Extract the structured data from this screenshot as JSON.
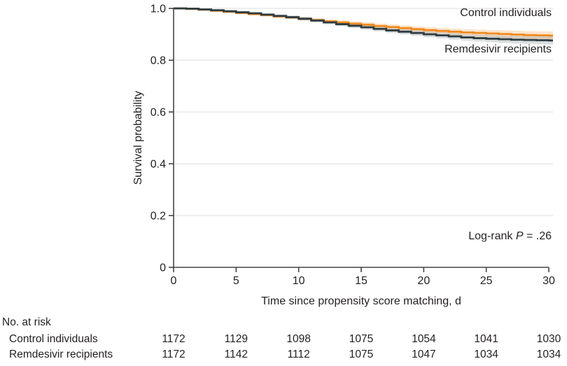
{
  "figure": {
    "background": "#ffffff",
    "axis_color": "#454545",
    "grid_color": "#e9e9e9",
    "text_color": "#231F20"
  },
  "chart_data": {
    "type": "line",
    "subtype": "kaplan-meier-step",
    "title": "",
    "xlabel": "Time since propensity score matching, d",
    "ylabel": "Survival probability",
    "xlim": [
      0,
      30
    ],
    "ylim": [
      0,
      1.0
    ],
    "x_ticks": [
      0,
      5,
      10,
      15,
      20,
      25,
      30
    ],
    "y_ticks": [
      0,
      0.2,
      0.4,
      0.6,
      0.8,
      1.0
    ],
    "y_tick_labels": [
      "0",
      "0.2",
      "0.4",
      "0.6",
      "0.8",
      "1.0"
    ],
    "grid": "horizontal",
    "legend_position": "inline-labels",
    "annotation": {
      "prefix": "Log-rank ",
      "stat": "P",
      "value": " = .26"
    },
    "series": [
      {
        "name": "Control individuals",
        "color": "#F18A21",
        "band_color": "#F18A21",
        "band_opacity": 0.22,
        "x": [
          0,
          1,
          2,
          3,
          4,
          5,
          6,
          7,
          8,
          9,
          10,
          11,
          12,
          13,
          14,
          15,
          16,
          17,
          18,
          19,
          20,
          21,
          22,
          23,
          24,
          25,
          26,
          27,
          28,
          29,
          30
        ],
        "values": [
          1.0,
          0.998,
          0.995,
          0.991,
          0.987,
          0.982,
          0.978,
          0.974,
          0.969,
          0.965,
          0.96,
          0.955,
          0.95,
          0.946,
          0.941,
          0.937,
          0.932,
          0.928,
          0.924,
          0.92,
          0.916,
          0.913,
          0.91,
          0.907,
          0.905,
          0.903,
          0.901,
          0.899,
          0.897,
          0.896,
          0.895
        ],
        "ci_halfwidth_start": 0.002,
        "ci_halfwidth_end": 0.016
      },
      {
        "name": "Remdesivir recipients",
        "color": "#2E3D42",
        "band_color": "#6E7A7D",
        "band_opacity": 0.25,
        "x": [
          0,
          1,
          2,
          3,
          4,
          5,
          6,
          7,
          8,
          9,
          10,
          11,
          12,
          13,
          14,
          15,
          16,
          17,
          18,
          19,
          20,
          21,
          22,
          23,
          24,
          25,
          26,
          27,
          28,
          29,
          30
        ],
        "values": [
          1.0,
          0.999,
          0.996,
          0.993,
          0.989,
          0.985,
          0.981,
          0.976,
          0.971,
          0.966,
          0.96,
          0.953,
          0.946,
          0.939,
          0.933,
          0.927,
          0.921,
          0.915,
          0.91,
          0.905,
          0.9,
          0.896,
          0.892,
          0.888,
          0.885,
          0.883,
          0.881,
          0.879,
          0.878,
          0.877,
          0.876
        ],
        "ci_halfwidth_start": 0.002,
        "ci_halfwidth_end": 0.016
      }
    ],
    "risk_table": {
      "title": "No. at risk",
      "time_points": [
        0,
        5,
        10,
        15,
        20,
        25,
        30
      ],
      "rows": [
        {
          "label": "Control individuals",
          "counts": [
            "1172",
            "1129",
            "1098",
            "1075",
            "1054",
            "1041",
            "1030"
          ]
        },
        {
          "label": "Remdesivir recipients",
          "counts": [
            "1172",
            "1142",
            "1112",
            "1075",
            "1047",
            "1034",
            "1034"
          ]
        }
      ]
    }
  }
}
